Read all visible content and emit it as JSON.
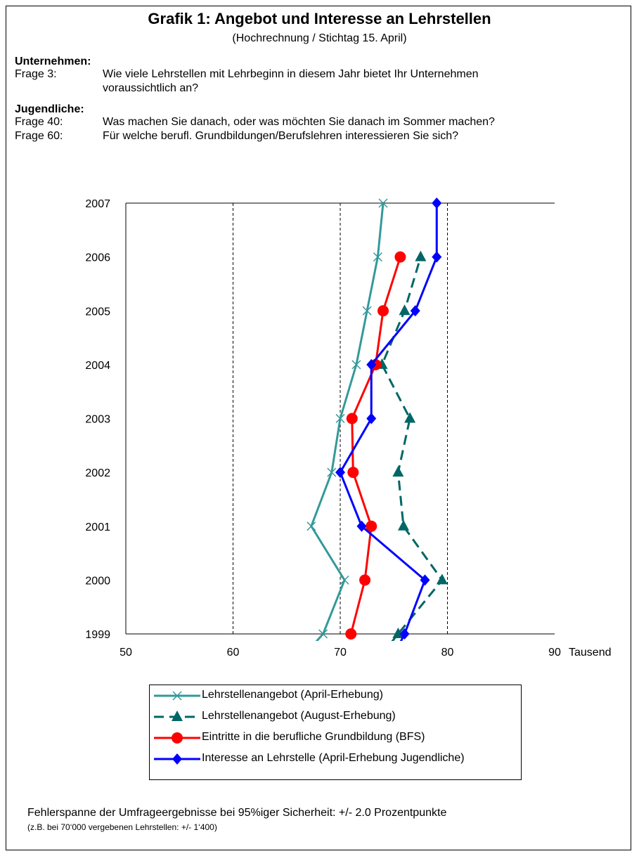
{
  "header": {
    "title": "Grafik 1: Angebot und Interesse an Lehrstellen",
    "subtitle": "(Hochrechnung / Stichtag 15. April)"
  },
  "questions": {
    "companies_heading": "Unternehmen:",
    "q3_label": "Frage 3:",
    "q3_line1": "Wie viele Lehrstellen mit Lehrbeginn in diesem Jahr bietet Ihr Unternehmen",
    "q3_line2": "voraussichtlich an?",
    "youth_heading": "Jugendliche:",
    "q40_label": "Frage 40:",
    "q40_text": "Was machen Sie danach, oder was möchten Sie danach im Sommer machen?",
    "q60_label": "Frage 60:",
    "q60_text": "Für welche berufl. Grundbildungen/Berufslehren  interessieren Sie sich?"
  },
  "footer": {
    "margin_text": "Fehlerspanne der Umfrageergebnisse bei 95%iger Sicherheit: +/- 2.0 Prozentpunkte",
    "margin_example": "(z.B. bei 70‘000 vergebenen Lehrstellen: +/- 1‘400)"
  },
  "chart_data": {
    "type": "line",
    "orientation": "horizontal",
    "xlabel": "Tausend",
    "xlim": [
      50,
      90
    ],
    "x_ticks": [
      50,
      60,
      70,
      80,
      90
    ],
    "x_tick_labels": [
      "50",
      "60",
      "70",
      "80",
      "90"
    ],
    "gridlines": [
      60,
      70,
      80
    ],
    "years": [
      1999,
      2000,
      2001,
      2002,
      2003,
      2004,
      2005,
      2006,
      2007
    ],
    "year_labels": [
      "1999",
      "2000",
      "2001",
      "2002",
      "2003",
      "2004",
      "2005",
      "2006",
      "2007"
    ],
    "legend_position": "bottom",
    "series": [
      {
        "name": "Lehrstellenangebot (April-Erhebung)",
        "color": "#339999",
        "marker": "x",
        "dash": false,
        "points": [
          [
            1998.8,
            67.5
          ],
          [
            1999,
            68.4
          ],
          [
            2000,
            70.4
          ],
          [
            2001,
            67.3
          ],
          [
            2002,
            69.2
          ],
          [
            2003,
            70.0
          ],
          [
            2004,
            71.5
          ],
          [
            2005,
            72.5
          ],
          [
            2006,
            73.5
          ],
          [
            2007,
            74.0
          ]
        ]
      },
      {
        "name": "Lehrstellenangebot (August-Erhebung)",
        "color": "#006666",
        "marker": "triangle",
        "dash": true,
        "points": [
          [
            1998.8,
            74.6
          ],
          [
            1999,
            75.4
          ],
          [
            2000,
            79.5
          ],
          [
            2001,
            75.9
          ],
          [
            2002,
            75.4
          ],
          [
            2003,
            76.5
          ],
          [
            2004,
            73.9
          ],
          [
            2005,
            76.0
          ],
          [
            2006,
            77.5
          ]
        ]
      },
      {
        "name": "Eintritte in die berufliche Grundbildung (BFS)",
        "color": "#ff0000",
        "marker": "circle",
        "dash": false,
        "points": [
          [
            1999,
            71.0
          ],
          [
            2000,
            72.3
          ],
          [
            2001,
            72.9
          ],
          [
            2002,
            71.2
          ],
          [
            2003,
            71.1
          ],
          [
            2004,
            73.3
          ],
          [
            2005,
            74.0
          ],
          [
            2006,
            75.6
          ]
        ]
      },
      {
        "name": "Interesse an Lehrstelle (April-Erhebung Jugendliche)",
        "color": "#0000ff",
        "marker": "diamond",
        "dash": false,
        "points": [
          [
            1998.8,
            75.5
          ],
          [
            1999,
            76.0
          ],
          [
            2000,
            77.9
          ],
          [
            2001,
            72.0
          ],
          [
            2002,
            70.0
          ],
          [
            2003,
            72.9
          ],
          [
            2004,
            72.9
          ],
          [
            2005,
            77.0
          ],
          [
            2006,
            79.0
          ],
          [
            2007,
            79.0
          ]
        ]
      }
    ]
  }
}
